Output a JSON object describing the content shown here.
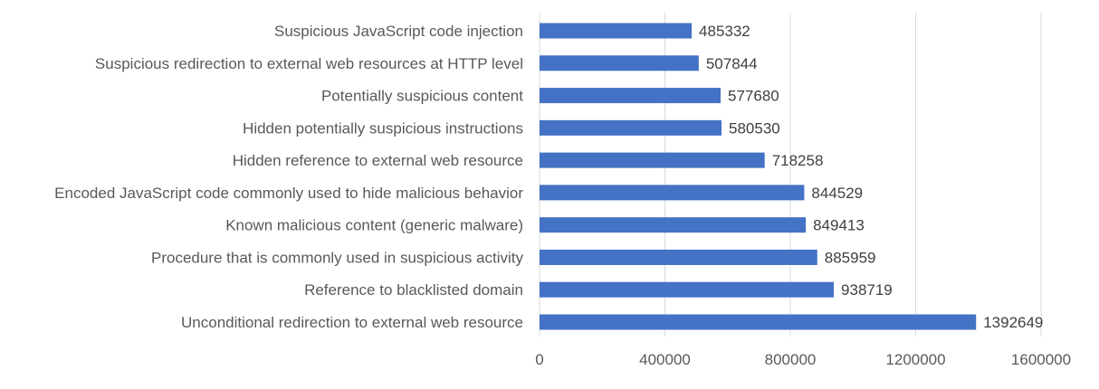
{
  "chart_data": {
    "type": "bar",
    "orientation": "horizontal",
    "title": "",
    "xlabel": "",
    "ylabel": "",
    "xlim": [
      0,
      1600000
    ],
    "x_ticks": [
      0,
      400000,
      800000,
      1200000,
      1600000
    ],
    "x_tick_labels": [
      "0",
      "400000",
      "800000",
      "1200000",
      "1600000"
    ],
    "grid": "vertical",
    "legend": "none",
    "bar_color": "#4472c4",
    "categories": [
      "Suspicious JavaScript code injection",
      "Suspicious redirection to external web resources at HTTP level",
      "Potentially suspicious content",
      "Hidden potentially suspicious instructions",
      "Hidden reference to external web resource",
      "Encoded JavaScript code commonly used to hide malicious behavior",
      "Known malicious content (generic malware)",
      "Procedure that is commonly used in suspicious activity",
      "Reference to blacklisted domain",
      "Unconditional redirection to external web resource"
    ],
    "values": [
      485332,
      507844,
      577680,
      580530,
      718258,
      844529,
      849413,
      885959,
      938719,
      1392649
    ],
    "value_labels": [
      "485332",
      "507844",
      "577680",
      "580530",
      "718258",
      "844529",
      "849413",
      "885959",
      "938719",
      "1392649"
    ]
  }
}
